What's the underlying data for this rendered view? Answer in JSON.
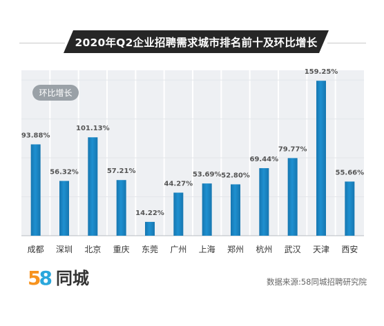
{
  "header": {
    "title": "2020年Q2企业招聘需求城市排名前十及环比增长"
  },
  "legend": {
    "label": "环比增长"
  },
  "footer": {
    "logo_digit_5": "5",
    "logo_digit_8": "8",
    "logo_text": "同城",
    "source": "数据来源:58同城招聘研究院"
  },
  "colors": {
    "bar": "#1e90d0",
    "bar_dark": "#1676b0",
    "plot_bg": "#eef0f3",
    "gridline": "#ffffff",
    "value_label": "#555555",
    "city_label": "#333333"
  },
  "chart_data": {
    "type": "bar",
    "title": "2020年Q2企业招聘需求城市排名前十及环比增长",
    "categories": [
      "成都",
      "深圳",
      "北京",
      "重庆",
      "东莞",
      "广州",
      "上海",
      "郑州",
      "杭州",
      "武汉",
      "天津",
      "西安"
    ],
    "value_labels": [
      "93.88%",
      "56.32%",
      "101.13%",
      "57.21%",
      "14.22%",
      "44.27%",
      "53.69%",
      "52.80%",
      "69.44%",
      "79.77%",
      "159.25%",
      "55.66%"
    ],
    "series": [
      {
        "values": [
          93.88,
          56.32,
          101.13,
          57.21,
          14.22,
          44.27,
          53.69,
          52.8,
          69.44,
          79.77,
          159.25,
          55.66
        ]
      }
    ],
    "ylim": [
      0,
      170
    ],
    "grid": true,
    "legend_position": "top-left"
  }
}
